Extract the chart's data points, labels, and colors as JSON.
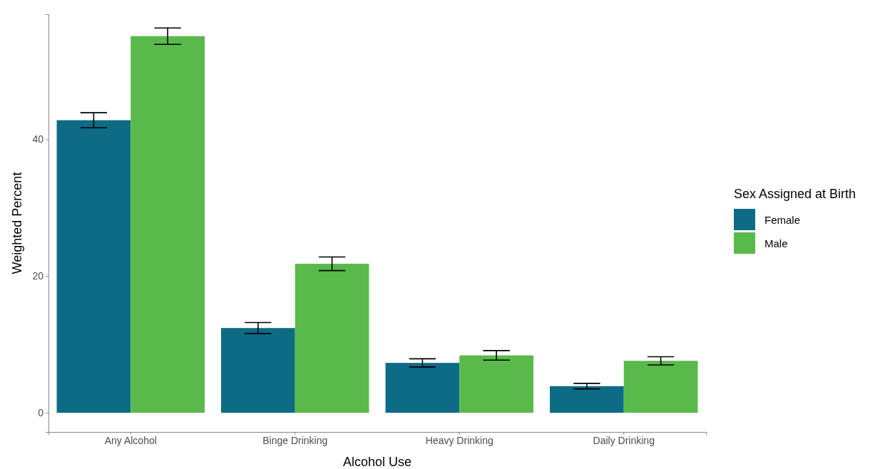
{
  "chart_data": {
    "type": "bar",
    "xlabel": "Alcohol Use",
    "ylabel": "Weighted Percent",
    "legend_title": "Sex Assigned at Birth",
    "categories": [
      "Any Alcohol",
      "Binge Drinking",
      "Heavy Drinking",
      "Daily Drinking"
    ],
    "series": [
      {
        "name": "Female",
        "color": "#0e6b86",
        "values": [
          42.8,
          12.4,
          7.3,
          3.9
        ],
        "errors": [
          1.1,
          0.8,
          0.6,
          0.4
        ]
      },
      {
        "name": "Male",
        "color": "#5ab94b",
        "values": [
          55.1,
          21.8,
          8.4,
          7.6
        ],
        "errors": [
          1.2,
          1.0,
          0.7,
          0.6
        ]
      }
    ],
    "ylim": [
      -2.8,
      58.3
    ],
    "yticks": [
      0,
      20,
      40
    ],
    "grid": false,
    "legend": "right"
  }
}
